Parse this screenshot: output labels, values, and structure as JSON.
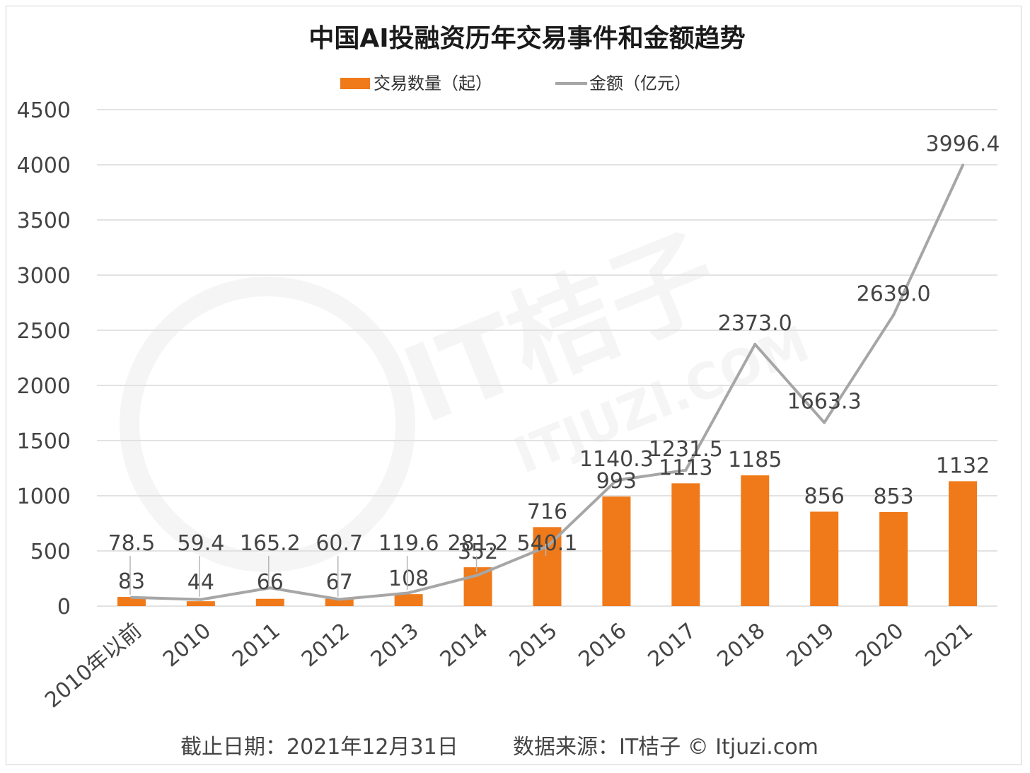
{
  "chart_data": {
    "type": "bar",
    "title": "中国AI投融资历年交易事件和金额趋势",
    "categories": [
      "2010年以前",
      "2010",
      "2011",
      "2012",
      "2013",
      "2014",
      "2015",
      "2016",
      "2017",
      "2018",
      "2019",
      "2020",
      "2021"
    ],
    "series": [
      {
        "name": "交易数量（起）",
        "type": "bar",
        "color": "#f07a1a",
        "values": [
          83,
          44,
          66,
          67,
          108,
          352,
          716,
          993,
          1113,
          1185,
          856,
          853,
          1132
        ],
        "labels": [
          "83",
          "44",
          "66",
          "67",
          "108",
          "352",
          "716",
          "993",
          "1113",
          "1185",
          "856",
          "853",
          "1132"
        ]
      },
      {
        "name": "金额（亿元）",
        "type": "line",
        "color": "#a6a6a6",
        "values": [
          78.5,
          59.4,
          165.2,
          60.7,
          119.6,
          281.2,
          540.1,
          1140.3,
          1231.5,
          2373.0,
          1663.3,
          2639.0,
          3996.4
        ],
        "labels": [
          "78.5",
          "59.4",
          "165.2",
          "60.7",
          "119.6",
          "281.2",
          "540.1",
          "1140.3",
          "1231.5",
          "2373.0",
          "1663.3",
          "2639.0",
          "3996.4"
        ]
      }
    ],
    "ylim": [
      0,
      4500
    ],
    "yticks": [
      0,
      500,
      1000,
      1500,
      2000,
      2500,
      3000,
      3500,
      4000,
      4500
    ],
    "ytick_labels": [
      "0",
      "500",
      "1000",
      "1500",
      "2000",
      "2500",
      "3000",
      "3500",
      "4000",
      "4500"
    ],
    "grid": true,
    "legend": "top-center",
    "xlabel": "",
    "ylabel": ""
  },
  "footer": {
    "date": "截止日期：2021年12月31日",
    "source": "数据来源：IT桔子 © Itjuzi.com"
  },
  "watermark": {
    "main": "IT桔子",
    "sub": "ITJUZI.COM"
  }
}
